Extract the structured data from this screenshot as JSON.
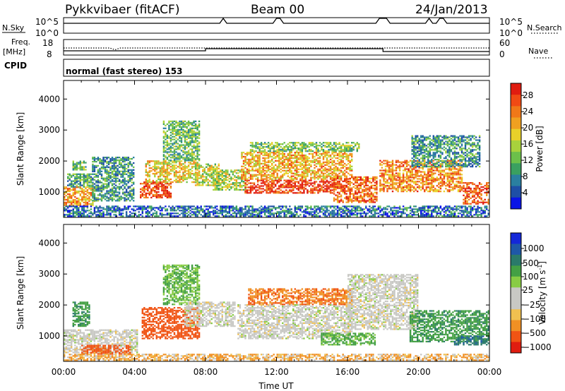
{
  "header": {
    "station": "Pykkvibaer (fitACF)",
    "beam": "Beam 00",
    "date": "24/Jan/2013"
  },
  "top_panel": {
    "left_label": "N.Sky",
    "right_label": "N.Search",
    "left_ticks": [
      "10^5",
      "10^0"
    ],
    "right_ticks": [
      "10^5",
      "10^0"
    ]
  },
  "freq_panel": {
    "left_label_1": "Freq.",
    "left_label_2": "[MHz]",
    "right_label": "Nave",
    "left_ticks": [
      "18",
      "8"
    ],
    "right_ticks": [
      "60",
      "0"
    ]
  },
  "cpid": {
    "label": "CPID",
    "text": "normal (fast stereo) 153"
  },
  "colors": {
    "power": [
      "#0a14e6",
      "#1e4fa6",
      "#2a7fa0",
      "#3aa060",
      "#6cc04a",
      "#a8d23c",
      "#e8d12a",
      "#f0a020",
      "#f07818",
      "#f04a14",
      "#e01c10"
    ],
    "velocity": [
      "#e01c10",
      "#f05414",
      "#f09024",
      "#f0c050",
      "#c8c8c4",
      "#c8c8c4",
      "#88cc44",
      "#44a044",
      "#2a7a6a",
      "#1e58a8",
      "#1428d8"
    ]
  },
  "chart_data": [
    {
      "type": "heatmap",
      "title": "",
      "ylabel": "Slant Range [km]",
      "xlabel": "",
      "x_range_hours": [
        0,
        24
      ],
      "ylim": [
        180,
        4600
      ],
      "yticks": [
        "1000",
        "2000",
        "3000",
        "4000"
      ],
      "colorbar": {
        "label": "Power [dB]",
        "ticks": [
          "4",
          "8",
          "12",
          "16",
          "20",
          "24",
          "28"
        ],
        "range": [
          0,
          31
        ]
      },
      "regions": [
        {
          "t0": 0.0,
          "t1": 1.8,
          "r0": 550,
          "r1": 1150,
          "value": 22
        },
        {
          "t0": 0.2,
          "t1": 1.6,
          "r0": 1150,
          "r1": 1600,
          "value": 10
        },
        {
          "t0": 0.5,
          "t1": 1.3,
          "r0": 1700,
          "r1": 2000,
          "value": 12
        },
        {
          "t0": 1.6,
          "t1": 4.0,
          "r0": 700,
          "r1": 2100,
          "value": 9
        },
        {
          "t0": 4.3,
          "t1": 6.0,
          "r0": 800,
          "r1": 1300,
          "value": 27
        },
        {
          "t0": 4.6,
          "t1": 7.5,
          "r0": 1300,
          "r1": 2000,
          "value": 19
        },
        {
          "t0": 5.6,
          "t1": 7.6,
          "r0": 2000,
          "r1": 3300,
          "value": 12
        },
        {
          "t0": 7.4,
          "t1": 8.7,
          "r0": 1200,
          "r1": 1900,
          "value": 16
        },
        {
          "t0": 8.4,
          "t1": 10.2,
          "r0": 1050,
          "r1": 1700,
          "value": 15
        },
        {
          "t0": 10.2,
          "t1": 15.2,
          "r0": 950,
          "r1": 1400,
          "value": 28
        },
        {
          "t0": 10.0,
          "t1": 16.2,
          "r0": 1400,
          "r1": 2300,
          "value": 21
        },
        {
          "t0": 10.5,
          "t1": 16.6,
          "r0": 2300,
          "r1": 2600,
          "value": 13
        },
        {
          "t0": 15.2,
          "t1": 17.7,
          "r0": 650,
          "r1": 1500,
          "value": 25
        },
        {
          "t0": 17.8,
          "t1": 22.5,
          "r0": 1000,
          "r1": 2000,
          "value": 23
        },
        {
          "t0": 19.6,
          "t1": 23.5,
          "r0": 1800,
          "r1": 2800,
          "value": 9
        },
        {
          "t0": 22.5,
          "t1": 24.0,
          "r0": 600,
          "r1": 1300,
          "value": 26
        },
        {
          "t0": 0.0,
          "t1": 24.0,
          "r0": 200,
          "r1": 550,
          "value": 6
        }
      ]
    },
    {
      "type": "heatmap",
      "title": "",
      "ylabel": "Slant Range [km]",
      "xlabel": "Time UT",
      "x_range_hours": [
        0,
        24
      ],
      "xticks": [
        "00:00",
        "04:00",
        "08:00",
        "12:00",
        "16:00",
        "20:00",
        "00:00"
      ],
      "ylim": [
        180,
        4600
      ],
      "yticks": [
        "1000",
        "2000",
        "3000",
        "4000"
      ],
      "colorbar": {
        "label": "Velocity [m s^-1]",
        "ticks": [
          "1000",
          "500",
          "100",
          "25",
          "−25",
          "−100",
          "−500",
          "−1000"
        ]
      },
      "regions": [
        {
          "t0": 0.0,
          "t1": 4.2,
          "r0": 450,
          "r1": 1200,
          "value": 0
        },
        {
          "t0": 1.0,
          "t1": 3.8,
          "r0": 400,
          "r1": 700,
          "value": -150
        },
        {
          "t0": 0.5,
          "t1": 1.5,
          "r0": 1300,
          "r1": 2100,
          "value": 120
        },
        {
          "t0": 4.4,
          "t1": 7.6,
          "r0": 900,
          "r1": 1900,
          "value": -180
        },
        {
          "t0": 5.6,
          "t1": 7.6,
          "r0": 2000,
          "r1": 3300,
          "value": 60
        },
        {
          "t0": 6.8,
          "t1": 9.6,
          "r0": 1300,
          "r1": 2100,
          "value": 0
        },
        {
          "t0": 9.8,
          "t1": 16.2,
          "r0": 900,
          "r1": 2000,
          "value": 0
        },
        {
          "t0": 10.4,
          "t1": 16.2,
          "r0": 2000,
          "r1": 2500,
          "value": -90
        },
        {
          "t0": 14.5,
          "t1": 17.6,
          "r0": 700,
          "r1": 1100,
          "value": 70
        },
        {
          "t0": 16.0,
          "t1": 20.0,
          "r0": 1200,
          "r1": 3000,
          "value": 0
        },
        {
          "t0": 19.5,
          "t1": 24.0,
          "r0": 800,
          "r1": 1800,
          "value": 120
        },
        {
          "t0": 22.0,
          "t1": 24.0,
          "r0": 700,
          "r1": 1000,
          "value": 400
        },
        {
          "t0": 0.0,
          "t1": 24.0,
          "r0": 200,
          "r1": 400,
          "value": -40
        }
      ]
    }
  ]
}
